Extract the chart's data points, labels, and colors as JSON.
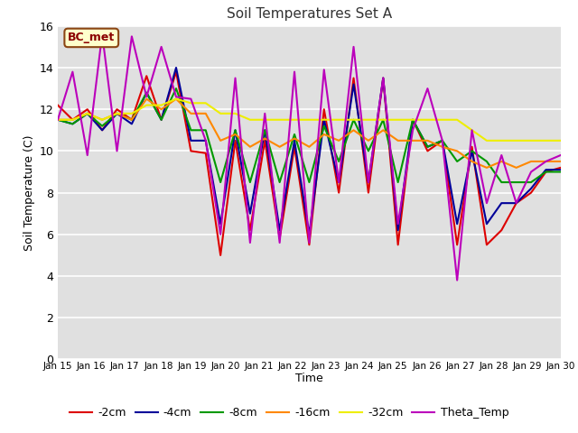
{
  "title": "Soil Temperatures Set A",
  "xlabel": "Time",
  "ylabel": "Soil Temperature (C)",
  "ylim": [
    0,
    16
  ],
  "yticks": [
    0,
    2,
    4,
    6,
    8,
    10,
    12,
    14,
    16
  ],
  "annotation": "BC_met",
  "bg_color": "#e0e0e0",
  "x_labels": [
    "Jan 15",
    "Jan 16",
    "Jan 17",
    "Jan 18",
    "Jan 19",
    "Jan 20",
    "Jan 21",
    "Jan 22",
    "Jan 23",
    "Jan 24",
    "Jan 25",
    "Jan 26",
    "Jan 27",
    "Jan 28",
    "Jan 29",
    "Jan 30"
  ],
  "series": {
    "-2cm": {
      "color": "#dd0000",
      "data": [
        12.2,
        11.5,
        12.0,
        11.0,
        12.0,
        11.5,
        13.6,
        11.5,
        13.8,
        10.0,
        9.9,
        5.0,
        10.5,
        6.2,
        10.5,
        5.8,
        10.2,
        5.5,
        12.0,
        8.0,
        13.5,
        8.0,
        13.5,
        5.5,
        11.5,
        10.0,
        10.5,
        5.5,
        10.2,
        5.5,
        6.2,
        7.5,
        8.0,
        9.0,
        9.2
      ]
    },
    "-4cm": {
      "color": "#000099",
      "data": [
        11.5,
        11.3,
        11.8,
        11.0,
        11.8,
        11.3,
        12.8,
        11.5,
        14.0,
        10.5,
        10.5,
        6.5,
        11.0,
        7.0,
        11.0,
        6.2,
        10.5,
        6.0,
        11.5,
        8.5,
        13.2,
        8.5,
        13.5,
        6.2,
        11.5,
        10.2,
        10.5,
        6.5,
        10.0,
        6.5,
        7.5,
        7.5,
        8.2,
        9.1,
        9.1
      ]
    },
    "-8cm": {
      "color": "#009900",
      "data": [
        11.5,
        11.3,
        11.8,
        11.2,
        11.8,
        11.5,
        12.8,
        11.5,
        13.0,
        11.0,
        11.0,
        8.5,
        11.0,
        8.5,
        11.0,
        8.5,
        10.8,
        8.5,
        11.2,
        9.5,
        11.5,
        10.0,
        11.5,
        8.5,
        11.5,
        10.2,
        10.5,
        9.5,
        10.0,
        9.5,
        8.5,
        8.5,
        8.5,
        9.0,
        9.0
      ]
    },
    "-16cm": {
      "color": "#ff8800",
      "data": [
        11.5,
        11.5,
        11.8,
        11.5,
        11.8,
        11.5,
        12.5,
        12.0,
        12.5,
        11.8,
        11.8,
        10.5,
        10.8,
        10.2,
        10.6,
        10.2,
        10.6,
        10.2,
        10.8,
        10.5,
        11.0,
        10.5,
        11.0,
        10.5,
        10.5,
        10.5,
        10.2,
        10.0,
        9.5,
        9.2,
        9.5,
        9.2,
        9.5,
        9.5,
        9.5
      ]
    },
    "-32cm": {
      "color": "#eeee00",
      "data": [
        11.5,
        11.5,
        11.8,
        11.5,
        11.8,
        11.8,
        12.2,
        12.2,
        12.5,
        12.3,
        12.3,
        11.8,
        11.8,
        11.5,
        11.5,
        11.5,
        11.5,
        11.5,
        11.5,
        11.5,
        11.5,
        11.5,
        11.5,
        11.5,
        11.5,
        11.5,
        11.5,
        11.5,
        11.0,
        10.5,
        10.5,
        10.5,
        10.5,
        10.5,
        10.5
      ]
    },
    "Theta_Temp": {
      "color": "#bb00bb",
      "data": [
        11.5,
        13.8,
        9.8,
        15.6,
        10.0,
        15.5,
        12.6,
        15.0,
        12.6,
        12.5,
        10.5,
        6.0,
        13.5,
        5.6,
        11.8,
        5.6,
        13.8,
        5.6,
        13.9,
        8.5,
        15.0,
        8.5,
        13.5,
        6.5,
        11.0,
        13.0,
        10.5,
        3.8,
        11.0,
        7.5,
        9.8,
        7.5,
        9.0,
        9.5,
        9.8
      ]
    }
  }
}
